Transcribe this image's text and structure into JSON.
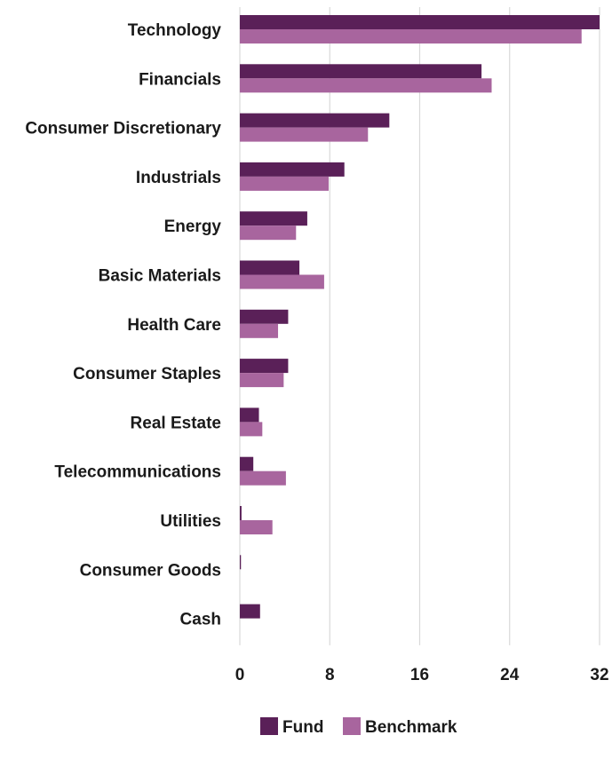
{
  "chart_data": {
    "type": "bar",
    "orientation": "horizontal",
    "categories": [
      "Technology",
      "Financials",
      "Consumer Discretionary",
      "Industrials",
      "Energy",
      "Basic Materials",
      "Health Care",
      "Consumer Staples",
      "Real Estate",
      "Telecommunications",
      "Utilities",
      "Consumer Goods",
      "Cash"
    ],
    "series": [
      {
        "name": "Fund",
        "color": "#5a2058",
        "values": [
          32.0,
          21.5,
          13.3,
          9.3,
          6.0,
          5.3,
          4.3,
          4.3,
          1.7,
          1.2,
          0.15,
          0.1,
          1.8
        ]
      },
      {
        "name": "Benchmark",
        "color": "#a8659e",
        "values": [
          30.4,
          22.4,
          11.4,
          7.9,
          5.0,
          7.5,
          3.4,
          3.9,
          2.0,
          4.1,
          2.9,
          0.0,
          0.0
        ]
      }
    ],
    "x_ticks": [
      "0",
      "8",
      "16",
      "24",
      "32"
    ],
    "xlim": [
      0,
      32
    ],
    "grid": true,
    "legend": "bottom-center"
  }
}
